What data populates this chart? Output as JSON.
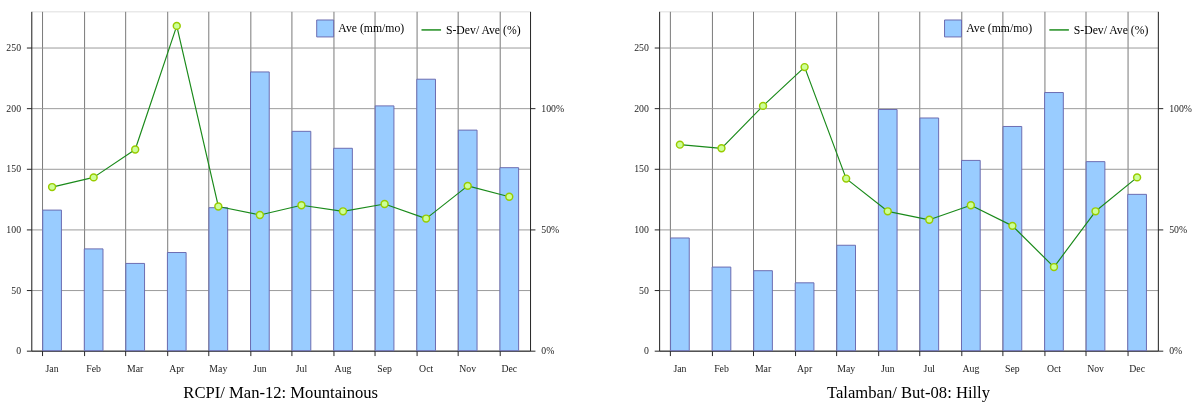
{
  "chart_data": [
    {
      "type": "bar",
      "title": "RCPI/ Man-12: Mountainous",
      "categories": [
        "Jan",
        "Feb",
        "Mar",
        "Apr",
        "May",
        "Jun",
        "Jul",
        "Aug",
        "Sep",
        "Oct",
        "Nov",
        "Dec"
      ],
      "series": [
        {
          "name": "Ave (mm/mo)",
          "color": "#99ccff",
          "values": [
            116,
            84,
            72,
            81,
            118,
            230,
            181,
            167,
            202,
            224,
            182,
            151
          ]
        },
        {
          "name": "S-Dev/ Ave (%)",
          "type": "line",
          "axis": "y2",
          "color": "#1a8a1a",
          "marker": "circle",
          "values": [
            67.5,
            71.5,
            83,
            134,
            59.5,
            56,
            60,
            57.5,
            60.5,
            54.5,
            68,
            63.5
          ]
        }
      ],
      "ylim": [
        0,
        280
      ],
      "yticks": [
        0,
        50,
        100,
        150,
        200,
        250
      ],
      "y2lim": [
        0,
        140
      ],
      "y2ticks": [
        {
          "value": 0,
          "label": "0%"
        },
        {
          "value": 50,
          "label": "50%"
        },
        {
          "value": 100,
          "label": "100%"
        }
      ],
      "grid": true,
      "legend": "top right"
    },
    {
      "type": "bar",
      "title": "Talamban/ But-08: Hilly",
      "categories": [
        "Jan",
        "Feb",
        "Mar",
        "Apr",
        "May",
        "Jun",
        "Jul",
        "Aug",
        "Sep",
        "Oct",
        "Nov",
        "Dec"
      ],
      "series": [
        {
          "name": "Ave (mm/mo)",
          "color": "#99ccff",
          "values": [
            93,
            69,
            66,
            56,
            87,
            199,
            192,
            157,
            185,
            213,
            156,
            129
          ]
        },
        {
          "name": "S-Dev/ Ave (%)",
          "type": "line",
          "axis": "y2",
          "color": "#1a8a1a",
          "marker": "circle",
          "values": [
            85,
            83.5,
            101,
            117,
            71,
            57.5,
            54,
            60,
            51.5,
            34.5,
            57.5,
            71.5
          ]
        }
      ],
      "ylim": [
        0,
        280
      ],
      "yticks": [
        0,
        50,
        100,
        150,
        200,
        250
      ],
      "y2lim": [
        0,
        140
      ],
      "y2ticks": [
        {
          "value": 0,
          "label": "0%"
        },
        {
          "value": 50,
          "label": "50%"
        },
        {
          "value": 100,
          "label": "100%"
        }
      ],
      "grid": true,
      "legend": "top right"
    }
  ]
}
